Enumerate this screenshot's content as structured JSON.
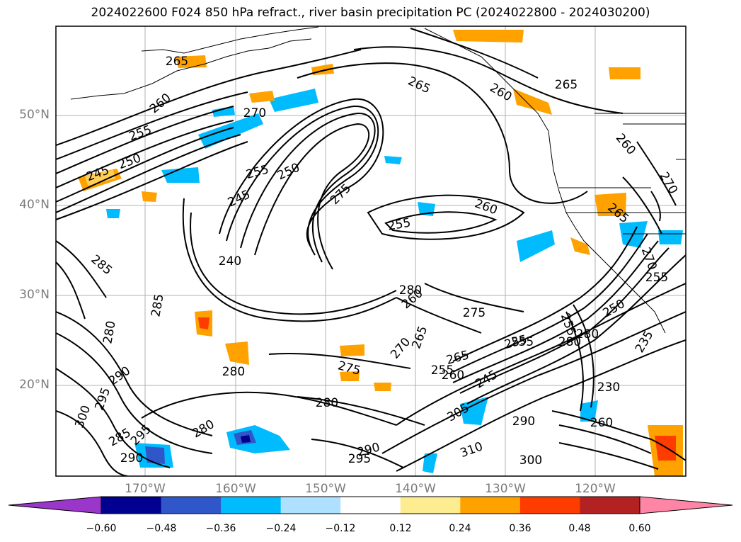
{
  "title": "2024022600 F024 850 hPa refract., river basin precipitation PC (2024022800 - 2024030200)",
  "lat_labels": [
    "50°N",
    "40°N",
    "30°N",
    "20°N"
  ],
  "lon_labels": [
    "170°W",
    "160°W",
    "150°W",
    "140°W",
    "130°W",
    "120°W"
  ],
  "contour_labels": [
    "265",
    "260",
    "255",
    "250",
    "245",
    "255",
    "250",
    "245",
    "240",
    "270",
    "265",
    "260",
    "255",
    "275",
    "260",
    "285",
    "285",
    "280",
    "290",
    "295",
    "300",
    "285",
    "295",
    "290",
    "280",
    "280",
    "280",
    "275",
    "270",
    "265",
    "265",
    "255",
    "260",
    "255",
    "280",
    "275",
    "245",
    "305",
    "310",
    "290",
    "300",
    "295",
    "290",
    "280",
    "250",
    "255",
    "235",
    "230",
    "260",
    "260",
    "265",
    "270",
    "270",
    "265",
    "280",
    "255",
    "260",
    "255"
  ],
  "colorbar": {
    "labels": [
      "−0.60",
      "−0.48",
      "−0.36",
      "−0.24",
      "−0.12",
      "0.12",
      "0.24",
      "0.36",
      "0.48",
      "0.60"
    ],
    "colors": [
      "#9a36c9",
      "#02008f",
      "#3057c9",
      "#00bcff",
      "#aee0ff",
      "#ffffff",
      "#fdec90",
      "#ffa200",
      "#ff3c00",
      "#b22222",
      "#ff85a6"
    ]
  }
}
